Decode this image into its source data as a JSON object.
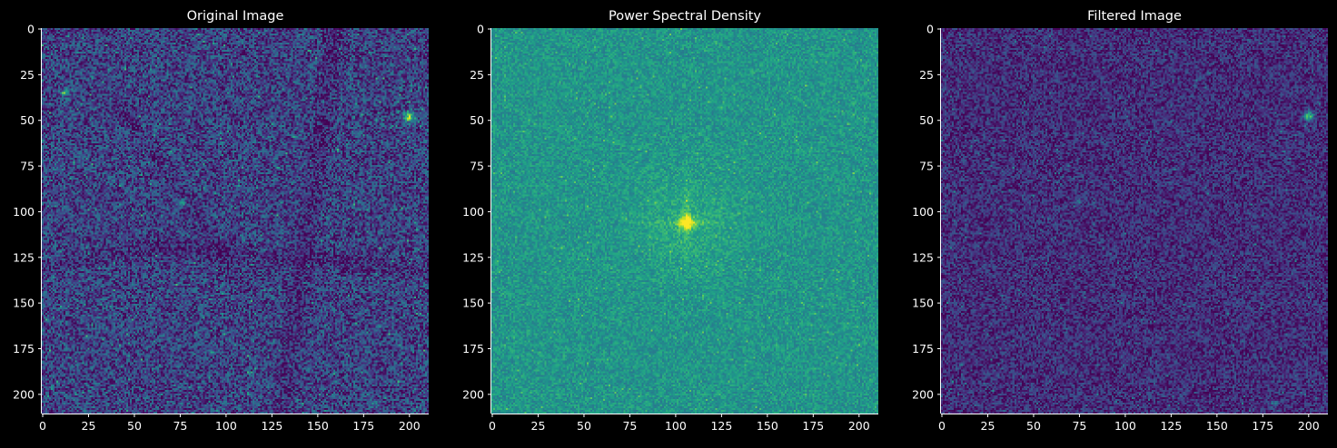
{
  "figure": {
    "background": "#000000",
    "text_color": "#ffffff",
    "axis_color": "#ffffff",
    "colormap": "viridis"
  },
  "chart_data": [
    {
      "type": "heatmap",
      "title": "Original Image",
      "xlabel": "",
      "ylabel": "",
      "xlim": [
        0,
        211
      ],
      "ylim": [
        211,
        0
      ],
      "xticks": [
        0,
        25,
        50,
        75,
        100,
        125,
        150,
        175,
        200
      ],
      "yticks": [
        0,
        25,
        50,
        75,
        100,
        125,
        150,
        175,
        200
      ],
      "xtick_labels": [
        "0",
        "25",
        "50",
        "75",
        "100",
        "125",
        "150",
        "175",
        "200"
      ],
      "ytick_labels": [
        "0",
        "25",
        "50",
        "75",
        "100",
        "125",
        "150",
        "175",
        "200"
      ],
      "grid": false,
      "description_values": {
        "base_level": 0.2,
        "noise": 0.22,
        "dark_bands": [
          {
            "from": [
              65,
              120
            ],
            "to": [
              200,
              130
            ],
            "width": 8,
            "depth": 0.1
          },
          {
            "from": [
              160,
              0
            ],
            "to": [
              130,
              211
            ],
            "width": 8,
            "depth": 0.1
          },
          {
            "from": [
              40,
              40
            ],
            "to": [
              110,
              140
            ],
            "width": 7,
            "depth": 0.08
          },
          {
            "from": [
              0,
              130
            ],
            "to": [
              60,
              120
            ],
            "width": 6,
            "depth": 0.08
          }
        ],
        "bright_spots": [
          {
            "x": 200,
            "y": 48,
            "r": 2.2,
            "amp": 0.6
          },
          {
            "x": 75,
            "y": 95,
            "r": 1.8,
            "amp": 0.35
          },
          {
            "x": 181,
            "y": 205,
            "r": 1.5,
            "amp": 0.3
          },
          {
            "x": 12,
            "y": 35,
            "r": 1.8,
            "amp": 0.25
          }
        ]
      }
    },
    {
      "type": "heatmap",
      "title": "Power Spectral Density",
      "xlabel": "",
      "ylabel": "",
      "xlim": [
        0,
        211
      ],
      "ylim": [
        211,
        0
      ],
      "xticks": [
        0,
        25,
        50,
        75,
        100,
        125,
        150,
        175,
        200
      ],
      "yticks": [
        0,
        25,
        50,
        75,
        100,
        125,
        150,
        175,
        200
      ],
      "xtick_labels": [
        "0",
        "25",
        "50",
        "75",
        "100",
        "125",
        "150",
        "175",
        "200"
      ],
      "ytick_labels": [
        "0",
        "25",
        "50",
        "75",
        "100",
        "125",
        "150",
        "175",
        "200"
      ],
      "grid": false,
      "description_values": {
        "base_level": 0.52,
        "noise": 0.12,
        "center_peak": {
          "x": 106,
          "y": 106,
          "amp": 0.45
        }
      }
    },
    {
      "type": "heatmap",
      "title": "Filtered Image",
      "xlabel": "",
      "ylabel": "",
      "xlim": [
        0,
        211
      ],
      "ylim": [
        211,
        0
      ],
      "xticks": [
        0,
        25,
        50,
        75,
        100,
        125,
        150,
        175,
        200
      ],
      "yticks": [
        0,
        25,
        50,
        75,
        100,
        125,
        150,
        175,
        200
      ],
      "xtick_labels": [
        "0",
        "25",
        "50",
        "75",
        "100",
        "125",
        "150",
        "175",
        "200"
      ],
      "ytick_labels": [
        "0",
        "25",
        "50",
        "75",
        "100",
        "125",
        "150",
        "175",
        "200"
      ],
      "grid": false,
      "description_values": {
        "base_level": 0.13,
        "noise": 0.16,
        "bright_spots": [
          {
            "x": 200,
            "y": 48,
            "r": 2.0,
            "amp": 0.55
          },
          {
            "x": 74,
            "y": 95,
            "r": 1.6,
            "amp": 0.22
          },
          {
            "x": 181,
            "y": 205,
            "r": 1.5,
            "amp": 0.22
          }
        ]
      }
    }
  ]
}
